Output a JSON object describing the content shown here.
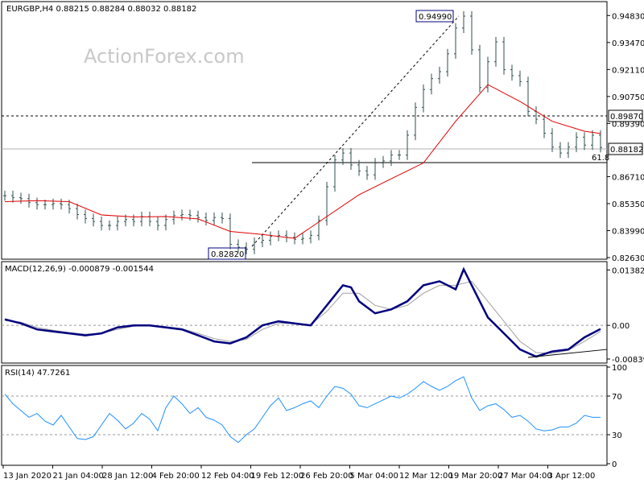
{
  "colors": {
    "bars": "#2f4f4f",
    "ma": "#e00000",
    "macd_line": "#00007f",
    "macd_signal": "#a0a0a0",
    "rsi": "#1e90ff",
    "grid": "#000000",
    "box_border": "#00007f"
  },
  "main": {
    "header": "EURGBP,H4  0.88215 0.88284 0.88032 0.88182",
    "watermark": "ActionForex.com",
    "high_label": "0.94990",
    "low_label": "0.82820",
    "fib_label": "61.8",
    "price_label": "0.88182",
    "level_label": "0.89870"
  },
  "macd": {
    "header": "MACD(12,26,9) -0.000879 -0.001544"
  },
  "rsi": {
    "header": "RSI(14) 47.7261"
  },
  "x_labels": [
    "13 Jan 2020",
    "21 Jan 04:00",
    "28 Jan 12:00",
    "4 Feb 20:00",
    "12 Feb 04:00",
    "19 Feb 12:00",
    "26 Feb 20:00",
    "5 Mar 04:00",
    "12 Mar 12:00",
    "19 Mar 20:00",
    "27 Mar 04:00",
    "3 Apr 12:00"
  ],
  "chart_data": [
    {
      "type": "line",
      "panel": "price",
      "ylim": [
        0.8263,
        0.9545
      ],
      "y_ticks": [
        "0.94830",
        "0.93470",
        "0.92110",
        "0.90750",
        "0.89390",
        "0.86710",
        "0.85350",
        "0.83990",
        "0.82630"
      ],
      "series": [
        {
          "style": "ohlc-bars",
          "x": [
            0,
            10,
            20,
            30,
            40,
            50,
            60,
            70,
            80,
            90,
            100,
            110,
            120,
            130,
            140,
            150,
            160,
            170,
            180,
            190,
            200,
            210,
            220,
            230,
            240,
            250,
            260,
            270,
            280,
            290,
            300,
            310,
            320,
            330,
            340,
            350,
            360,
            370,
            380,
            390,
            400,
            410,
            420,
            430,
            440,
            450,
            460,
            470,
            480,
            490,
            500,
            510,
            520,
            530,
            540,
            550,
            560,
            570,
            580,
            590,
            600,
            610,
            620,
            630,
            640,
            650,
            660,
            670,
            680,
            690,
            700,
            710,
            720,
            730,
            740
          ],
          "values": [
            0.8575,
            0.8565,
            0.856,
            0.854,
            0.853,
            0.853,
            0.8535,
            0.853,
            0.851,
            0.848,
            0.846,
            0.8445,
            0.8425,
            0.8425,
            0.8445,
            0.8455,
            0.8445,
            0.847,
            0.8445,
            0.8425,
            0.8455,
            0.8475,
            0.848,
            0.8475,
            0.8465,
            0.845,
            0.8465,
            0.846,
            0.833,
            0.8315,
            0.8305,
            0.834,
            0.835,
            0.837,
            0.8375,
            0.8365,
            0.8355,
            0.836,
            0.8375,
            0.845,
            0.862,
            0.8755,
            0.879,
            0.873,
            0.87,
            0.868,
            0.874,
            0.875,
            0.878,
            0.878,
            0.888,
            0.902,
            0.911,
            0.9165,
            0.92,
            0.929,
            0.942,
            0.948,
            0.931,
            0.912,
            0.925,
            0.935,
            0.921,
            0.918,
            0.915,
            0.9,
            0.896,
            0.889,
            0.882,
            0.879,
            0.882,
            0.887,
            0.883,
            0.888,
            0.8818
          ]
        },
        {
          "style": "line",
          "x": [
            0,
            40,
            80,
            120,
            160,
            200,
            240,
            280,
            320,
            360,
            400,
            440,
            480,
            520,
            560,
            600,
            640,
            680,
            720,
            740
          ],
          "values": [
            0.8545,
            0.855,
            0.8545,
            0.8478,
            0.8468,
            0.847,
            0.8458,
            0.8395,
            0.838,
            0.836,
            0.847,
            0.858,
            0.866,
            0.874,
            0.895,
            0.9135,
            0.905,
            0.895,
            0.89,
            0.8888
          ]
        }
      ]
    },
    {
      "type": "line",
      "panel": "macd",
      "ylim": [
        -0.009,
        0.0155
      ],
      "y_ticks": [
        "0.013821",
        "0.00",
        "-0.008397"
      ],
      "series": [
        {
          "style": "line",
          "x": [
            0,
            20,
            40,
            60,
            80,
            100,
            120,
            140,
            160,
            180,
            200,
            220,
            240,
            260,
            280,
            300,
            320,
            340,
            360,
            380,
            400,
            420,
            430,
            440,
            460,
            480,
            500,
            520,
            540,
            560,
            570,
            580,
            600,
            620,
            640,
            660,
            680,
            700,
            720,
            740
          ],
          "values": [
            0.0015,
            0.0005,
            -0.001,
            -0.0015,
            -0.002,
            -0.0025,
            -0.002,
            -0.0005,
            0.0,
            0.0,
            -0.0005,
            -0.001,
            -0.0025,
            -0.004,
            -0.0045,
            -0.003,
            0.0,
            0.001,
            0.0005,
            0.0,
            0.005,
            0.01,
            0.0095,
            0.006,
            0.003,
            0.004,
            0.006,
            0.01,
            0.011,
            0.009,
            0.014,
            0.01,
            0.002,
            -0.002,
            -0.006,
            -0.0078,
            -0.0065,
            -0.006,
            -0.003,
            -0.0009
          ]
        },
        {
          "style": "line",
          "x": [
            0,
            20,
            40,
            60,
            80,
            100,
            120,
            140,
            160,
            180,
            200,
            220,
            240,
            260,
            280,
            300,
            320,
            340,
            360,
            380,
            400,
            420,
            440,
            460,
            480,
            500,
            520,
            540,
            560,
            580,
            600,
            620,
            640,
            660,
            680,
            700,
            720,
            740
          ],
          "values": [
            0.0012,
            0.0008,
            -0.0005,
            -0.0012,
            -0.0018,
            -0.0022,
            -0.002,
            -0.001,
            -0.0002,
            0.0,
            -0.0003,
            -0.0008,
            -0.002,
            -0.0033,
            -0.004,
            -0.0035,
            -0.001,
            0.0005,
            0.0005,
            0.0002,
            0.0035,
            0.008,
            0.008,
            0.005,
            0.004,
            0.005,
            0.008,
            0.01,
            0.01,
            0.011,
            0.006,
            0.001,
            -0.004,
            -0.0068,
            -0.007,
            -0.0062,
            -0.004,
            -0.0015
          ]
        },
        {
          "style": "trendline",
          "x": [
            650,
            754
          ],
          "values": [
            -0.008,
            -0.006
          ]
        }
      ]
    },
    {
      "type": "line",
      "panel": "rsi",
      "ylim": [
        0,
        100
      ],
      "y_ticks": [
        "100",
        "70",
        "30",
        "0"
      ],
      "series": [
        {
          "style": "line",
          "x": [
            0,
            10,
            20,
            30,
            40,
            50,
            60,
            70,
            80,
            90,
            100,
            110,
            120,
            130,
            140,
            150,
            160,
            170,
            180,
            190,
            200,
            210,
            220,
            230,
            240,
            250,
            260,
            270,
            280,
            290,
            300,
            310,
            320,
            330,
            340,
            350,
            360,
            370,
            380,
            390,
            400,
            410,
            420,
            430,
            440,
            450,
            460,
            470,
            480,
            490,
            500,
            510,
            520,
            530,
            540,
            550,
            560,
            570,
            580,
            590,
            600,
            610,
            620,
            630,
            640,
            650,
            660,
            670,
            680,
            690,
            700,
            710,
            720,
            730,
            740
          ],
          "values": [
            72,
            62,
            55,
            48,
            52,
            44,
            40,
            50,
            38,
            26,
            25,
            28,
            40,
            52,
            45,
            36,
            42,
            52,
            46,
            34,
            58,
            70,
            62,
            52,
            58,
            48,
            45,
            40,
            28,
            22,
            30,
            36,
            48,
            60,
            68,
            55,
            58,
            62,
            65,
            58,
            70,
            80,
            78,
            72,
            60,
            58,
            62,
            66,
            70,
            68,
            72,
            78,
            85,
            80,
            76,
            80,
            86,
            90,
            68,
            55,
            60,
            62,
            56,
            48,
            50,
            44,
            36,
            34,
            35,
            38,
            38,
            42,
            50,
            48,
            48
          ]
        }
      ]
    }
  ]
}
